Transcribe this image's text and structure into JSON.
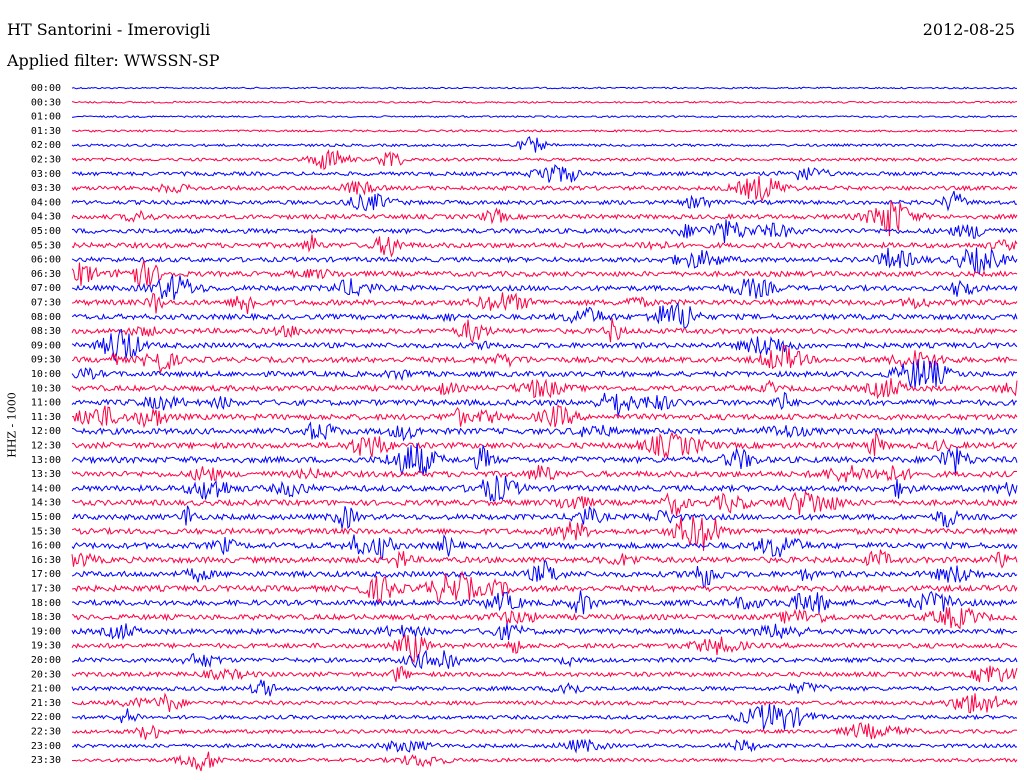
{
  "header": {
    "station": "HT Santorini - Imerovigli",
    "date": "2012-08-25",
    "filter": "Applied filter: WWSSN-SP"
  },
  "colors": {
    "blue": "#0000ff",
    "red": "#ff0044"
  },
  "chart_data": {
    "type": "line",
    "title": "",
    "ylabel": "HHZ - 1000",
    "xlabel": "",
    "grid": false,
    "series_colors": [
      "blue",
      "red"
    ],
    "rows": [
      "00:00",
      "00:30",
      "01:00",
      "01:30",
      "02:00",
      "02:30",
      "03:00",
      "03:30",
      "04:00",
      "04:30",
      "05:00",
      "05:30",
      "06:00",
      "06:30",
      "07:00",
      "07:30",
      "08:00",
      "08:30",
      "09:00",
      "09:30",
      "10:00",
      "10:30",
      "11:00",
      "11:30",
      "12:00",
      "12:30",
      "13:00",
      "13:30",
      "14:00",
      "14:30",
      "15:00",
      "15:30",
      "16:00",
      "16:30",
      "17:00",
      "17:30",
      "18:00",
      "18:30",
      "19:00",
      "19:30",
      "20:00",
      "20:30",
      "21:00",
      "21:30",
      "22:00",
      "22:30",
      "23:00",
      "23:30"
    ],
    "activity": [
      0.05,
      0.08,
      0.08,
      0.12,
      0.2,
      0.28,
      0.4,
      0.45,
      0.45,
      0.5,
      0.55,
      0.6,
      0.55,
      0.6,
      0.62,
      0.65,
      0.62,
      0.6,
      0.62,
      0.65,
      0.62,
      0.65,
      0.68,
      0.7,
      0.72,
      0.7,
      0.72,
      0.7,
      0.7,
      0.65,
      0.65,
      0.68,
      0.72,
      0.7,
      0.68,
      0.7,
      0.65,
      0.62,
      0.62,
      0.55,
      0.5,
      0.5,
      0.45,
      0.42,
      0.4,
      0.4,
      0.38,
      0.35
    ]
  }
}
